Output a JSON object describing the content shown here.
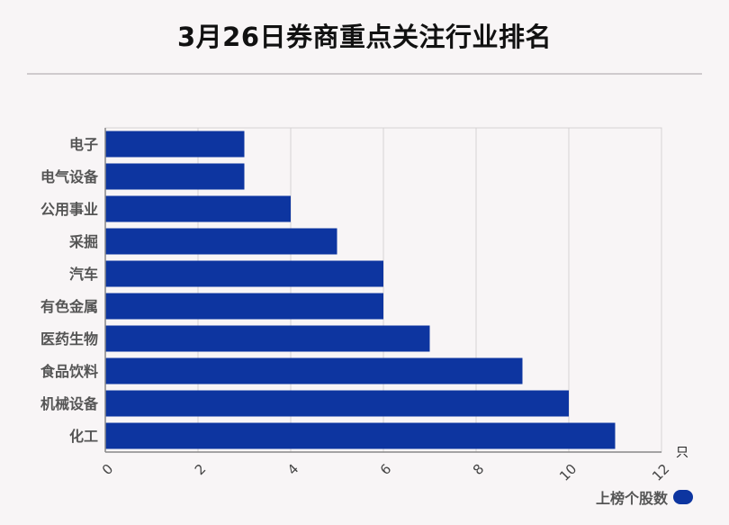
{
  "title": "3月26日券商重点关注行业排名",
  "chart_data": {
    "type": "bar",
    "orientation": "horizontal",
    "title": "3月26日券商重点关注行业排名",
    "categories": [
      "电子",
      "电气设备",
      "公用事业",
      "采掘",
      "汽车",
      "有色金属",
      "医药生物",
      "食品饮料",
      "机械设备",
      "化工"
    ],
    "series": [
      {
        "name": "上榜个股数",
        "values": [
          3,
          3,
          4,
          5,
          6,
          6,
          7,
          9,
          10,
          11
        ]
      }
    ],
    "xlim": [
      0,
      12
    ],
    "xticks": [
      0,
      2,
      4,
      6,
      8,
      10,
      12
    ],
    "xunit": "只",
    "grid": true,
    "legend_position": "bottom-right"
  },
  "colors": {
    "bar": "#0d35a0",
    "grid": "#d6d2d4",
    "axis": "#888888"
  },
  "legend": {
    "label": "上榜个股数"
  }
}
